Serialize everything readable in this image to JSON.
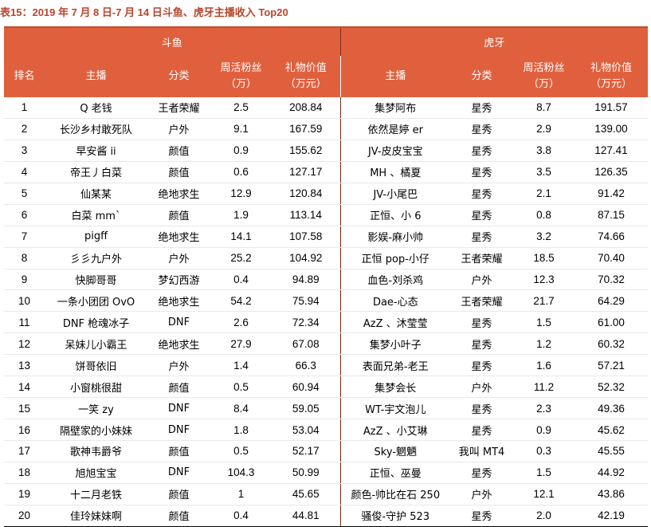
{
  "caption": "表15：2019 年 7 月 8 日-7 月 14 日斗鱼、虎牙主播收入 Top20",
  "groups": {
    "left": "斗鱼",
    "right": "虎牙"
  },
  "columns": {
    "rank": "排名",
    "streamer": "主播",
    "category": "分类",
    "fans": "周活粉丝\n（万）",
    "gift": "礼物价值\n（万元）"
  },
  "rows": [
    {
      "rank": "1",
      "d": [
        "Q 老钱",
        "王者荣耀",
        "2.5",
        "208.84"
      ],
      "h": [
        "集梦阿布",
        "星秀",
        "8.7",
        "191.57"
      ]
    },
    {
      "rank": "2",
      "d": [
        "长沙乡村敢死队",
        "户外",
        "9.1",
        "167.59"
      ],
      "h": [
        "依然是婷 er",
        "星秀",
        "2.9",
        "139.00"
      ]
    },
    {
      "rank": "3",
      "d": [
        "早安酱 ii",
        "颜值",
        "0.9",
        "155.62"
      ],
      "h": [
        "JV-皮皮宝宝",
        "星秀",
        "3.8",
        "127.41"
      ]
    },
    {
      "rank": "4",
      "d": [
        "帝王丿白菜",
        "颜值",
        "0.6",
        "127.17"
      ],
      "h": [
        "MH 、橘夏",
        "星秀",
        "3.5",
        "126.35"
      ]
    },
    {
      "rank": "5",
      "d": [
        "仙某某",
        "绝地求生",
        "12.9",
        "120.84"
      ],
      "h": [
        "JV-小尾巴",
        "星秀",
        "2.1",
        "91.42"
      ]
    },
    {
      "rank": "6",
      "d": [
        "白菜 mm`",
        "颜值",
        "1.9",
        "113.14"
      ],
      "h": [
        "正恒、小 6",
        "星秀",
        "0.8",
        "87.15"
      ]
    },
    {
      "rank": "7",
      "d": [
        "pigff",
        "绝地求生",
        "14.1",
        "107.58"
      ],
      "h": [
        "影娱-麻小帅",
        "星秀",
        "3.2",
        "74.66"
      ]
    },
    {
      "rank": "8",
      "d": [
        "彡彡九户外",
        "户外",
        "25.2",
        "104.92"
      ],
      "h": [
        "正恒 pop-小仔",
        "王者荣耀",
        "18.5",
        "70.40"
      ]
    },
    {
      "rank": "9",
      "d": [
        "快脚哥哥",
        "梦幻西游",
        "0.4",
        "94.89"
      ],
      "h": [
        "血色-刘杀鸡",
        "户外",
        "12.3",
        "70.32"
      ]
    },
    {
      "rank": "10",
      "d": [
        "一条小团团 OvO",
        "绝地求生",
        "54.2",
        "75.94"
      ],
      "h": [
        "Dae-心态",
        "王者荣耀",
        "21.7",
        "64.29"
      ]
    },
    {
      "rank": "11",
      "d": [
        "DNF 枪魂冰子",
        "DNF",
        "2.6",
        "72.34"
      ],
      "h": [
        "AzZ 、沐莹莹",
        "星秀",
        "1.5",
        "61.00"
      ]
    },
    {
      "rank": "12",
      "d": [
        "呆妹儿小霸王",
        "绝地求生",
        "27.9",
        "67.08"
      ],
      "h": [
        "集梦小叶子",
        "星秀",
        "1.2",
        "60.32"
      ]
    },
    {
      "rank": "13",
      "d": [
        "饼哥依旧",
        "户外",
        "1.4",
        "66.3"
      ],
      "h": [
        "表面兄弟-老王",
        "星秀",
        "1.6",
        "57.21"
      ]
    },
    {
      "rank": "14",
      "d": [
        "小窗桃很甜",
        "颜值",
        "0.5",
        "60.94"
      ],
      "h": [
        "集梦会长",
        "户外",
        "11.2",
        "52.32"
      ]
    },
    {
      "rank": "15",
      "d": [
        "一笑 zy",
        "DNF",
        "8.4",
        "59.05"
      ],
      "h": [
        "WT-宇文泡儿",
        "星秀",
        "2.3",
        "49.36"
      ]
    },
    {
      "rank": "16",
      "d": [
        "隔壁家的小妹妹",
        "DNF",
        "1.8",
        "53.04"
      ],
      "h": [
        "AzZ 、小艾琳",
        "星秀",
        "0.9",
        "45.62"
      ]
    },
    {
      "rank": "17",
      "d": [
        "歌神韦爵爷",
        "颜值",
        "0.5",
        "52.17"
      ],
      "h": [
        "Sky-魍魉",
        "我叫 MT4",
        "0.3",
        "45.55"
      ]
    },
    {
      "rank": "18",
      "d": [
        "旭旭宝宝",
        "DNF",
        "104.3",
        "50.99"
      ],
      "h": [
        "正恒、巫曼",
        "星秀",
        "1.5",
        "44.92"
      ]
    },
    {
      "rank": "19",
      "d": [
        "十二月老铁",
        "颜值",
        "1",
        "45.65"
      ],
      "h": [
        "颜色-帅比在石 250",
        "户外",
        "12.1",
        "43.86"
      ]
    },
    {
      "rank": "20",
      "d": [
        "佳玲妹妹啊",
        "颜值",
        "0.4",
        "44.81"
      ],
      "h": [
        "骚俊-守护 523",
        "星秀",
        "2.0",
        "42.19"
      ]
    }
  ]
}
